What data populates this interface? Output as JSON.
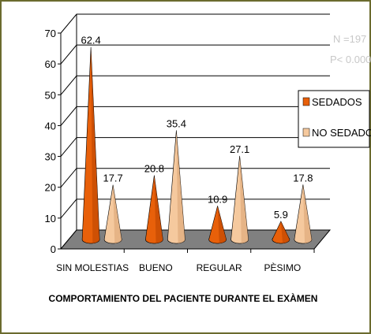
{
  "chart_data": {
    "type": "bar",
    "style": "3d-cone",
    "categories": [
      "SIN MOLESTIAS",
      "BUENO",
      "REGULAR",
      "PÈSIMO"
    ],
    "series": [
      {
        "name": "SEDADOS",
        "values": [
          62.4,
          20.8,
          10.9,
          5.9
        ],
        "color": "#e8600a"
      },
      {
        "name": "NO SEDADOS",
        "values": [
          17.7,
          35.4,
          27.1,
          17.8
        ],
        "color": "#f5c99e"
      }
    ],
    "data_labels": [
      [
        "62.4",
        "20.8",
        "10.9",
        "5.9"
      ],
      [
        "17.7",
        "35.4",
        "27.1",
        "17.8"
      ]
    ],
    "xlabel": "COMPORTAMIENTO DEL PACIENTE DURANTE EL EXÀMEN",
    "ylabel": "",
    "ylim": [
      0,
      70
    ],
    "yticks": [
      "0",
      "10",
      "20",
      "30",
      "40",
      "50",
      "60",
      "70"
    ],
    "grid": true,
    "legend_position": "right",
    "annotations": [
      "N =197",
      "P< 0.000"
    ],
    "floor_color": "#808080",
    "frame_color": "#6b6b2e"
  }
}
